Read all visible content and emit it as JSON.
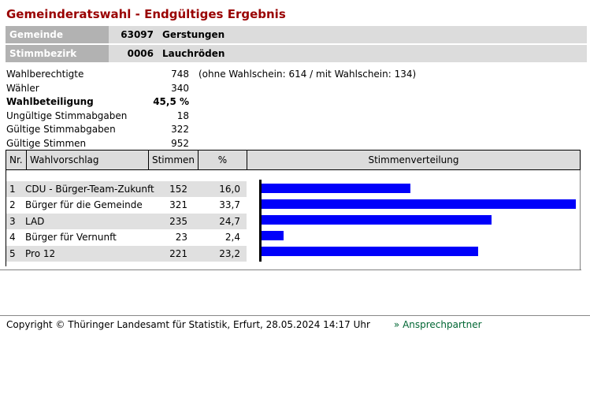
{
  "page": {
    "title": "Gemeinderatswahl - Endgültiges Ergebnis"
  },
  "info": {
    "rows": [
      {
        "label": "Gemeinde",
        "code": "63097",
        "name": "Gerstungen"
      },
      {
        "label": "Stimmbezirk",
        "code": "0006",
        "name": "Lauchröden"
      }
    ]
  },
  "stats": {
    "rows": [
      {
        "label": "Wahlberechtigte",
        "value": "748",
        "extra": "(ohne Wahlschein: 614 / mit Wahlschein: 134)"
      },
      {
        "label": "Wähler",
        "value": "340",
        "extra": ""
      },
      {
        "label": "Wahlbeteiligung",
        "value": "45,5 %",
        "extra": ""
      },
      {
        "label": "Ungültige Stimmabgaben",
        "value": "18",
        "extra": ""
      },
      {
        "label": "Gültige Stimmabgaben",
        "value": "322",
        "extra": ""
      },
      {
        "label": "Gültige Stimmen",
        "value": "952",
        "extra": ""
      }
    ]
  },
  "results_table": {
    "headers": {
      "nr": "Nr.",
      "proposal": "Wahlvorschlag",
      "votes": "Stimmen",
      "percent": "%",
      "distribution": "Stimmenverteilung"
    },
    "rows": [
      {
        "nr": "1",
        "proposal": "CDU - Bürger-Team-Zukunft",
        "votes": "152",
        "percent": "16,0"
      },
      {
        "nr": "2",
        "proposal": "Bürger für die Gemeinde",
        "votes": "321",
        "percent": "33,7"
      },
      {
        "nr": "3",
        "proposal": "LAD",
        "votes": "235",
        "percent": "24,7"
      },
      {
        "nr": "4",
        "proposal": "Bürger für Vernunft",
        "votes": "23",
        "percent": "2,4"
      },
      {
        "nr": "5",
        "proposal": "Pro 12",
        "votes": "221",
        "percent": "23,2"
      }
    ]
  },
  "chart_data": {
    "type": "bar",
    "orientation": "horizontal",
    "title": "Stimmenverteilung",
    "categories": [
      "CDU - Bürger-Team-Zukunft",
      "Bürger für die Gemeinde",
      "LAD",
      "Bürger für Vernunft",
      "Pro 12"
    ],
    "values": [
      16.0,
      33.7,
      24.7,
      2.4,
      23.2
    ],
    "votes": [
      152,
      321,
      235,
      23,
      221
    ],
    "xlabel": "",
    "ylabel": "",
    "xlim": [
      0,
      33.7
    ],
    "grid": false,
    "legend": false,
    "bar_color": "#0000fa"
  },
  "footer": {
    "copyright": "Copyright © Thüringer Landesamt für Statistik, Erfurt, 28.05.2024 14:17 Uhr",
    "link": "» Ansprechpartner"
  },
  "colors": {
    "title_red": "#990000",
    "bar_blue": "#0000fa",
    "link_green": "#006633",
    "label_gray_dark": "#b2b2b2",
    "cell_gray_light": "#dcdcdc",
    "row_gray": "#e0e0e0",
    "border_gray": "#808080"
  }
}
